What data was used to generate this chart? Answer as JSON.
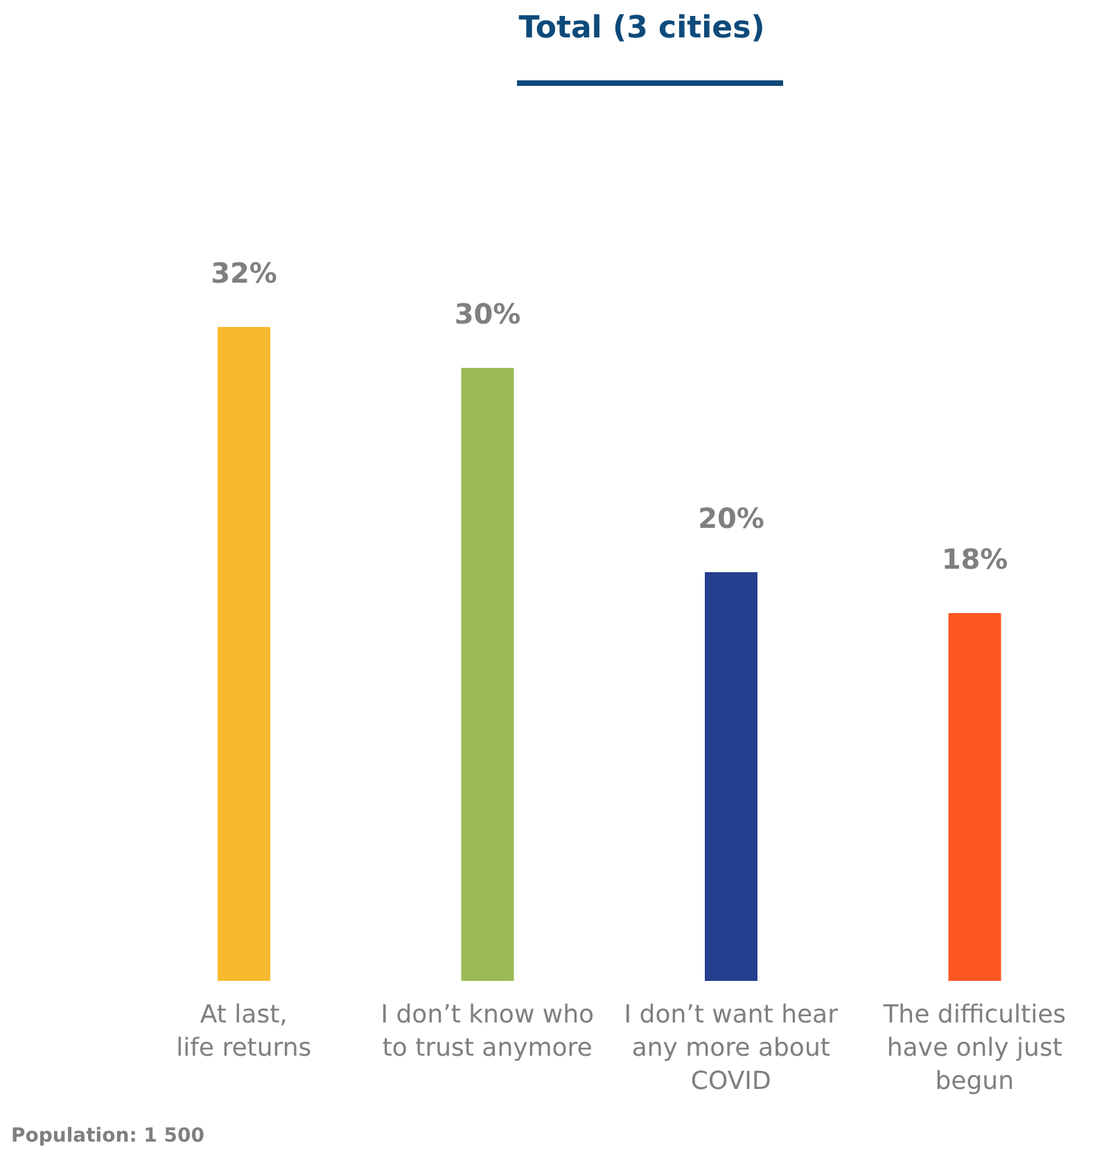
{
  "chart_data": {
    "type": "bar",
    "title": "Total (3 cities)",
    "categories": [
      "At last,\nlife returns",
      "I don’t know who\nto trust anymore",
      "I don’t want hear\nany more about\nCOVID",
      "The difficulties\nhave only just\nbegun"
    ],
    "values": [
      32,
      30,
      20,
      18
    ],
    "colors": [
      "#f7b92f",
      "#9bbb57",
      "#253f8e",
      "#fd5722"
    ],
    "value_labels": [
      "32%",
      "30%",
      "20%",
      "18%"
    ],
    "annotations": [
      "Population: 1 500"
    ]
  }
}
